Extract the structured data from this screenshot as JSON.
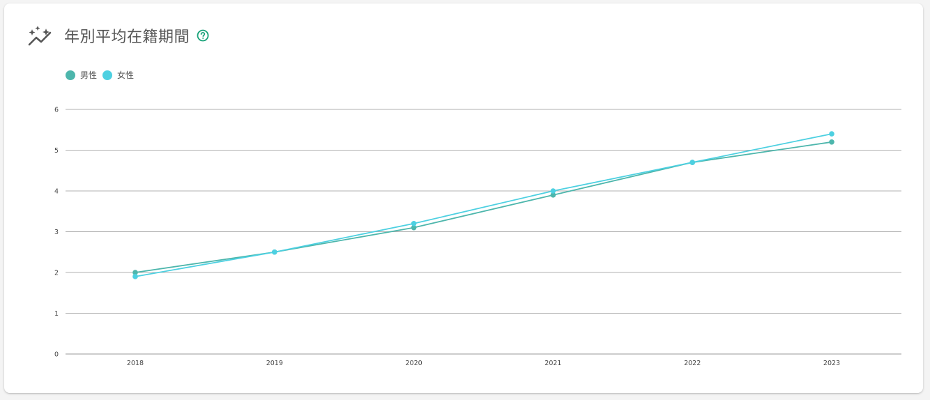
{
  "header": {
    "title": "年別平均在籍期間",
    "title_icon": "sparkle-trend-icon",
    "help_icon": "help-circle-icon"
  },
  "colors": {
    "male": "#4db6ac",
    "female": "#4dd0e1",
    "accent": "#1aa37a",
    "grid": "#b0b0b0"
  },
  "chart_data": {
    "type": "line",
    "title": "年別平均在籍期間",
    "xlabel": "",
    "ylabel": "",
    "x": [
      "2018",
      "2019",
      "2020",
      "2021",
      "2022",
      "2023"
    ],
    "ylim": [
      0,
      6
    ],
    "yticks": [
      "0",
      "1",
      "2",
      "3",
      "4",
      "5",
      "6"
    ],
    "grid": true,
    "legend_position": "top-left",
    "series": [
      {
        "name": "男性",
        "color": "#4db6ac",
        "values": [
          2.0,
          2.5,
          3.1,
          3.9,
          4.7,
          5.2
        ]
      },
      {
        "name": "女性",
        "color": "#4dd0e1",
        "values": [
          1.9,
          2.5,
          3.2,
          4.0,
          4.7,
          5.4
        ]
      }
    ]
  }
}
